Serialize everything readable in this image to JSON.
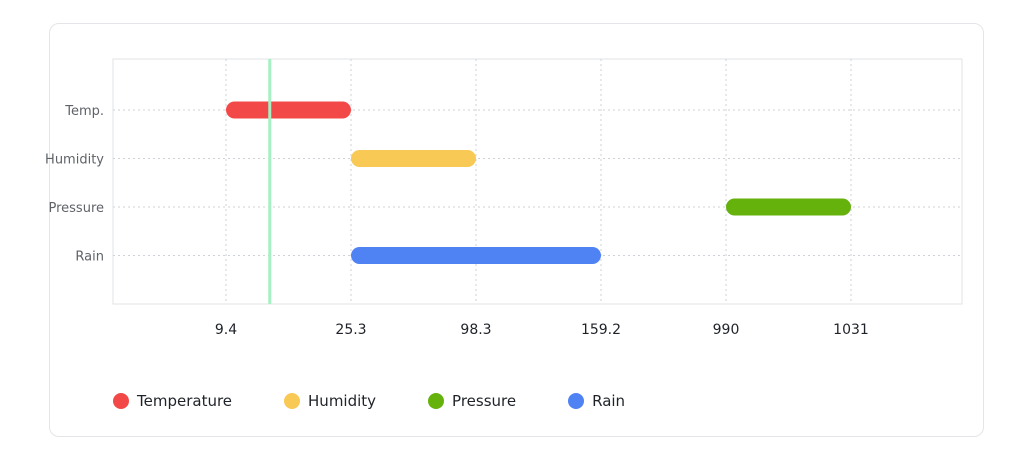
{
  "chart_data": {
    "type": "bar",
    "orientation": "horizontal-range",
    "categories": [
      "Temp.",
      "Humidity",
      "Pressure",
      "Rain"
    ],
    "x_tick_labels": [
      "9.4",
      "25.3",
      "98.3",
      "159.2",
      "990",
      "1031"
    ],
    "ranges": [
      {
        "category": "Temp.",
        "start": "9.4",
        "end": "25.3",
        "color": "#f24848"
      },
      {
        "category": "Humidity",
        "start": "25.3",
        "end": "98.3",
        "color": "#f8c955"
      },
      {
        "category": "Pressure",
        "start": "990",
        "end": "1031",
        "color": "#66b20c"
      },
      {
        "category": "Rain",
        "start": "25.3",
        "end": "159.2",
        "color": "#4f82f3"
      }
    ],
    "marker_line": {
      "color": "#a6f0c4"
    },
    "grid": true,
    "legend_position": "bottom-left",
    "legend": [
      {
        "label": "Temperature",
        "color": "#f24848"
      },
      {
        "label": "Humidity",
        "color": "#f8c955"
      },
      {
        "label": "Pressure",
        "color": "#66b20c"
      },
      {
        "label": "Rain",
        "color": "#4f82f3"
      }
    ]
  }
}
